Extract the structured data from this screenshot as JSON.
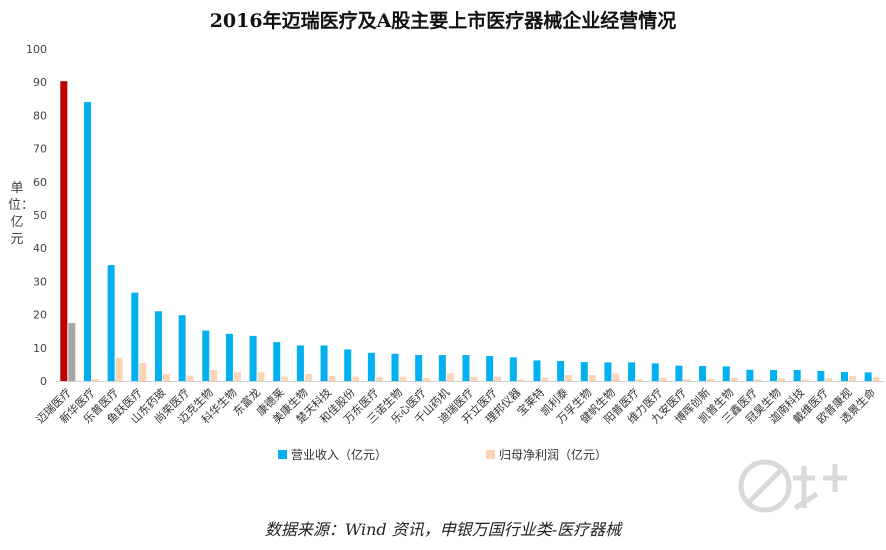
{
  "title": "2016年迈瑞医疗及A股主要上市医疗器械企业经营情况",
  "source": "数据来源：Wind 资讯，申银万国行业类-医疗器械",
  "watermark_text": "南方+",
  "chart_data": {
    "type": "bar",
    "title": "2016年迈瑞医疗及A股主要上市医疗器械企业经营情况",
    "ylabel": "单位：亿元",
    "ylim": [
      0,
      100
    ],
    "yticks": [
      0,
      10,
      20,
      30,
      40,
      50,
      60,
      70,
      80,
      90,
      100
    ],
    "grid": false,
    "legend_position": "bottom",
    "highlight": {
      "category": "迈瑞医疗",
      "revenue_color": "#c00000",
      "profit_color": "#a6a6a6"
    },
    "categories": [
      "迈瑞医疗",
      "新华医疗",
      "乐普医疗",
      "鱼跃医疗",
      "山东药玻",
      "尚荣医疗",
      "迈克生物",
      "科华生物",
      "东富龙",
      "康德莱",
      "美康生物",
      "楚天科技",
      "和佳股份",
      "万东医疗",
      "三诺生物",
      "乐心医疗",
      "千山药机",
      "迪瑞医疗",
      "开立医疗",
      "理邦仪器",
      "宝莱特",
      "凯利泰",
      "万孚生物",
      "健帆生物",
      "阳普医疗",
      "维力医疗",
      "九安医疗",
      "博晖创新",
      "凯普生物",
      "三鑫医疗",
      "冠昊生物",
      "迦南科技",
      "戴维医疗",
      "欧普康视",
      "透景生命"
    ],
    "series": [
      {
        "name": "营业收入（亿元）",
        "color": "#00b0f0",
        "values": [
          90.3,
          84.0,
          34.9,
          26.6,
          21.0,
          19.8,
          15.2,
          14.2,
          13.6,
          11.7,
          10.7,
          10.7,
          9.5,
          8.5,
          8.2,
          7.8,
          7.8,
          7.8,
          7.5,
          7.1,
          6.2,
          6.0,
          5.7,
          5.6,
          5.6,
          5.3,
          4.6,
          4.5,
          4.4,
          3.4,
          3.3,
          3.3,
          3.0,
          2.7,
          2.6
        ]
      },
      {
        "name": "归母净利润（亿元）",
        "color": "#fbd5b5",
        "values": [
          17.5,
          0.6,
          7.0,
          5.4,
          2.1,
          1.6,
          3.3,
          2.6,
          2.6,
          1.3,
          2.1,
          1.5,
          1.3,
          1.1,
          1.3,
          0.9,
          2.3,
          1.2,
          1.3,
          0.4,
          1.0,
          1.8,
          1.8,
          2.3,
          0.5,
          1.0,
          0.5,
          0.6,
          0.9,
          0.5,
          0.8,
          0.5,
          0.8,
          1.5,
          1.1
        ]
      }
    ]
  }
}
